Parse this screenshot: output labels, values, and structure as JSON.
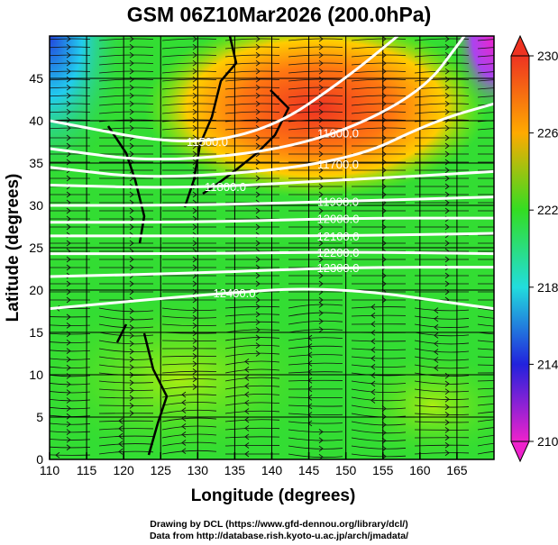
{
  "title": "GSM 06Z10Mar2026 (200.0hPa)",
  "xlabel": "Longitude (degrees)",
  "ylabel": "Latitude  (degrees)",
  "x_ticks": [
    "110",
    "115",
    "120",
    "125",
    "130",
    "135",
    "140",
    "145",
    "150",
    "155",
    "160",
    "165"
  ],
  "y_ticks": [
    "0",
    "5",
    "10",
    "15",
    "20",
    "25",
    "30",
    "35",
    "40",
    "45"
  ],
  "lon_range": [
    110,
    170
  ],
  "lat_range": [
    0,
    50
  ],
  "colorbar": {
    "ticks": [
      "230",
      "226",
      "222",
      "218",
      "214",
      "210"
    ],
    "range": [
      210,
      230
    ],
    "colors": [
      "#ee22cc",
      "#2222dd",
      "#22dddd",
      "#33dd22",
      "#ffaa00",
      "#ee3322"
    ]
  },
  "contours": [
    {
      "label": "11500.0",
      "pts": [
        [
          110,
          40
        ],
        [
          128,
          37
        ],
        [
          140,
          39
        ],
        [
          150,
          45
        ],
        [
          157,
          50
        ]
      ]
    },
    {
      "label": "11600.0",
      "pts": [
        [
          110,
          36.7
        ],
        [
          125,
          35
        ],
        [
          145,
          37
        ],
        [
          160,
          43
        ],
        [
          166,
          50
        ]
      ]
    },
    {
      "label": "11700.0",
      "pts": [
        [
          110,
          34.5
        ],
        [
          125,
          33
        ],
        [
          150,
          35
        ],
        [
          162,
          40
        ],
        [
          170,
          42
        ]
      ]
    },
    {
      "label": "11800.0",
      "pts": [
        [
          110,
          32.4
        ],
        [
          128,
          32
        ],
        [
          150,
          33
        ],
        [
          170,
          34
        ]
      ]
    },
    {
      "label": "11900.0",
      "pts": [
        [
          110,
          30
        ],
        [
          130,
          30
        ],
        [
          150,
          30.5
        ],
        [
          170,
          31
        ]
      ]
    },
    {
      "label": "12000.0",
      "pts": [
        [
          110,
          28
        ],
        [
          130,
          28
        ],
        [
          150,
          28.5
        ],
        [
          170,
          28.5
        ]
      ]
    },
    {
      "label": "12100.0",
      "pts": [
        [
          110,
          26.4
        ],
        [
          130,
          26.4
        ],
        [
          150,
          26.4
        ],
        [
          170,
          26.7
        ]
      ]
    },
    {
      "label": "12200.0",
      "pts": [
        [
          110,
          24.3
        ],
        [
          130,
          24.3
        ],
        [
          150,
          24.5
        ],
        [
          170,
          24.3
        ]
      ]
    },
    {
      "label": "12300.0",
      "pts": [
        [
          110,
          21.6
        ],
        [
          130,
          22
        ],
        [
          150,
          22.7
        ],
        [
          170,
          22.7
        ]
      ]
    },
    {
      "label": "12400.0",
      "pts": [
        [
          110,
          17.8
        ],
        [
          130,
          19.4
        ],
        [
          148,
          20.5
        ],
        [
          170,
          17.8
        ]
      ]
    }
  ],
  "footer": {
    "line1": "Drawing by DCL (https://www.gfd-dennou.org/library/dcl/)",
    "line2": "Data from http://database.rish.kyoto-u.ac.jp/arch/jmadata/"
  }
}
